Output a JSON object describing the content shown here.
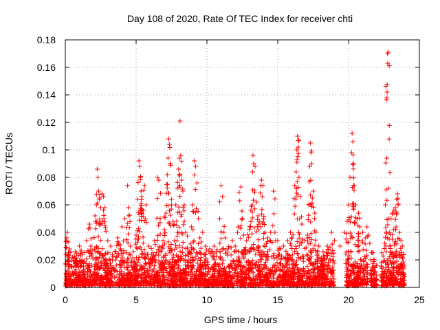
{
  "chart_data": {
    "type": "scatter",
    "title": "Day 108 of 2020, Rate Of TEC Index for receiver chti",
    "xlabel": "GPS time / hours",
    "ylabel": "ROTI / TECUs",
    "xlim": [
      0,
      25
    ],
    "ylim": [
      0,
      0.18
    ],
    "xticks": [
      0,
      5,
      10,
      15,
      20,
      25
    ],
    "yticks": [
      0,
      0.02,
      0.04,
      0.06,
      0.08,
      0.1,
      0.12,
      0.14,
      0.16,
      0.18
    ],
    "xtick_labels": [
      "0",
      "5",
      "10",
      "15",
      "20",
      "25"
    ],
    "ytick_labels": [
      "0",
      "0.02",
      "0.04",
      "0.06",
      "0.08",
      "0.1",
      "0.12",
      "0.14",
      "0.16",
      "0.18"
    ],
    "grid": true,
    "marker": "+",
    "marker_color": "#ff0000",
    "series": [
      {
        "name": "ROTI",
        "points": [
          [
            0.1,
            0.036
          ],
          [
            0.15,
            0.04
          ],
          [
            0.2,
            0.033
          ],
          [
            0.3,
            0.028
          ],
          [
            0.5,
            0.022
          ],
          [
            0.7,
            0.026
          ],
          [
            1.0,
            0.03
          ],
          [
            1.2,
            0.024
          ],
          [
            1.5,
            0.034
          ],
          [
            1.7,
            0.046
          ],
          [
            1.8,
            0.03
          ],
          [
            2.1,
            0.052
          ],
          [
            2.2,
            0.06
          ],
          [
            2.25,
            0.086
          ],
          [
            2.3,
            0.08
          ],
          [
            2.35,
            0.07
          ],
          [
            2.4,
            0.064
          ],
          [
            2.5,
            0.058
          ],
          [
            2.6,
            0.068
          ],
          [
            2.7,
            0.066
          ],
          [
            2.8,
            0.058
          ],
          [
            3.0,
            0.034
          ],
          [
            3.2,
            0.03
          ],
          [
            3.5,
            0.026
          ],
          [
            3.7,
            0.036
          ],
          [
            3.9,
            0.028
          ],
          [
            4.0,
            0.044
          ],
          [
            4.2,
            0.05
          ],
          [
            4.4,
            0.074
          ],
          [
            4.45,
            0.058
          ],
          [
            4.5,
            0.052
          ],
          [
            4.6,
            0.03
          ],
          [
            4.8,
            0.026
          ],
          [
            5.0,
            0.038
          ],
          [
            5.1,
            0.064
          ],
          [
            5.2,
            0.092
          ],
          [
            5.25,
            0.088
          ],
          [
            5.3,
            0.08
          ],
          [
            5.35,
            0.07
          ],
          [
            5.4,
            0.066
          ],
          [
            5.5,
            0.056
          ],
          [
            5.6,
            0.074
          ],
          [
            5.7,
            0.06
          ],
          [
            5.9,
            0.03
          ],
          [
            6.1,
            0.024
          ],
          [
            6.3,
            0.034
          ],
          [
            6.5,
            0.08
          ],
          [
            6.6,
            0.078
          ],
          [
            6.7,
            0.05
          ],
          [
            6.9,
            0.034
          ],
          [
            7.0,
            0.042
          ],
          [
            7.1,
            0.054
          ],
          [
            7.2,
            0.082
          ],
          [
            7.25,
            0.094
          ],
          [
            7.3,
            0.108
          ],
          [
            7.35,
            0.104
          ],
          [
            7.4,
            0.09
          ],
          [
            7.5,
            0.06
          ],
          [
            7.6,
            0.048
          ],
          [
            7.7,
            0.034
          ],
          [
            7.8,
            0.06
          ],
          [
            7.9,
            0.072
          ],
          [
            8.0,
            0.086
          ],
          [
            8.05,
            0.094
          ],
          [
            8.1,
            0.121
          ],
          [
            8.15,
            0.096
          ],
          [
            8.2,
            0.078
          ],
          [
            8.3,
            0.07
          ],
          [
            8.4,
            0.048
          ],
          [
            8.5,
            0.04
          ],
          [
            8.7,
            0.026
          ],
          [
            8.9,
            0.044
          ],
          [
            9.0,
            0.06
          ],
          [
            9.1,
            0.092
          ],
          [
            9.2,
            0.088
          ],
          [
            9.3,
            0.076
          ],
          [
            9.4,
            0.05
          ],
          [
            9.5,
            0.036
          ],
          [
            9.7,
            0.04
          ],
          [
            9.9,
            0.03
          ],
          [
            10.2,
            0.028
          ],
          [
            10.5,
            0.03
          ],
          [
            10.9,
            0.05
          ],
          [
            11.0,
            0.074
          ],
          [
            11.1,
            0.066
          ],
          [
            11.2,
            0.04
          ],
          [
            11.5,
            0.028
          ],
          [
            11.8,
            0.034
          ],
          [
            12.0,
            0.03
          ],
          [
            12.2,
            0.044
          ],
          [
            12.4,
            0.073
          ],
          [
            12.5,
            0.05
          ],
          [
            12.6,
            0.038
          ],
          [
            12.8,
            0.034
          ],
          [
            13.0,
            0.044
          ],
          [
            13.1,
            0.056
          ],
          [
            13.2,
            0.06
          ],
          [
            13.25,
            0.096
          ],
          [
            13.3,
            0.09
          ],
          [
            13.4,
            0.088
          ],
          [
            13.5,
            0.062
          ],
          [
            13.6,
            0.052
          ],
          [
            13.7,
            0.048
          ],
          [
            13.8,
            0.074
          ],
          [
            13.85,
            0.078
          ],
          [
            13.9,
            0.066
          ],
          [
            14.0,
            0.05
          ],
          [
            14.1,
            0.04
          ],
          [
            14.2,
            0.032
          ],
          [
            14.3,
            0.036
          ],
          [
            14.5,
            0.04
          ],
          [
            14.7,
            0.07
          ],
          [
            14.8,
            0.04
          ],
          [
            15.0,
            0.034
          ],
          [
            15.2,
            0.028
          ],
          [
            15.4,
            0.03
          ],
          [
            15.7,
            0.034
          ],
          [
            15.9,
            0.04
          ],
          [
            16.0,
            0.036
          ],
          [
            16.2,
            0.074
          ],
          [
            16.3,
            0.084
          ],
          [
            16.35,
            0.1
          ],
          [
            16.4,
            0.11
          ],
          [
            16.45,
            0.102
          ],
          [
            16.5,
            0.08
          ],
          [
            16.6,
            0.066
          ],
          [
            16.7,
            0.046
          ],
          [
            16.9,
            0.034
          ],
          [
            17.1,
            0.038
          ],
          [
            17.2,
            0.06
          ],
          [
            17.25,
            0.088
          ],
          [
            17.3,
            0.105
          ],
          [
            17.35,
            0.098
          ],
          [
            17.4,
            0.09
          ],
          [
            17.5,
            0.07
          ],
          [
            17.6,
            0.05
          ],
          [
            17.7,
            0.04
          ],
          [
            17.9,
            0.03
          ],
          [
            18.2,
            0.026
          ],
          [
            18.5,
            0.03
          ],
          [
            18.8,
            0.04
          ],
          [
            19.0,
            0.034
          ],
          [
            19.4,
            0.03
          ],
          [
            19.7,
            0.04
          ],
          [
            19.9,
            0.048
          ],
          [
            20.0,
            0.06
          ],
          [
            20.1,
            0.08
          ],
          [
            20.2,
            0.098
          ],
          [
            20.25,
            0.112
          ],
          [
            20.3,
            0.106
          ],
          [
            20.35,
            0.09
          ],
          [
            20.4,
            0.074
          ],
          [
            20.5,
            0.06
          ],
          [
            20.6,
            0.05
          ],
          [
            20.7,
            0.054
          ],
          [
            20.8,
            0.044
          ],
          [
            21.0,
            0.04
          ],
          [
            21.2,
            0.036
          ],
          [
            21.3,
            0.044
          ],
          [
            21.4,
            0.038
          ],
          [
            21.5,
            0.032
          ],
          [
            21.8,
            0.02
          ],
          [
            22.0,
            0.016
          ],
          [
            22.3,
            0.018
          ],
          [
            22.6,
            0.06
          ],
          [
            22.65,
            0.071
          ],
          [
            22.7,
            0.094
          ],
          [
            22.72,
            0.142
          ],
          [
            22.75,
            0.17
          ],
          [
            22.8,
            0.171
          ],
          [
            22.85,
            0.05
          ],
          [
            22.9,
            0.04
          ],
          [
            23.0,
            0.05
          ],
          [
            23.1,
            0.054
          ],
          [
            23.2,
            0.056
          ],
          [
            23.3,
            0.058
          ],
          [
            23.4,
            0.064
          ],
          [
            23.45,
            0.068
          ],
          [
            23.5,
            0.06
          ],
          [
            23.6,
            0.04
          ],
          [
            23.7,
            0.034
          ],
          [
            23.8,
            0.03
          ],
          [
            23.9,
            0.024
          ]
        ]
      }
    ]
  }
}
